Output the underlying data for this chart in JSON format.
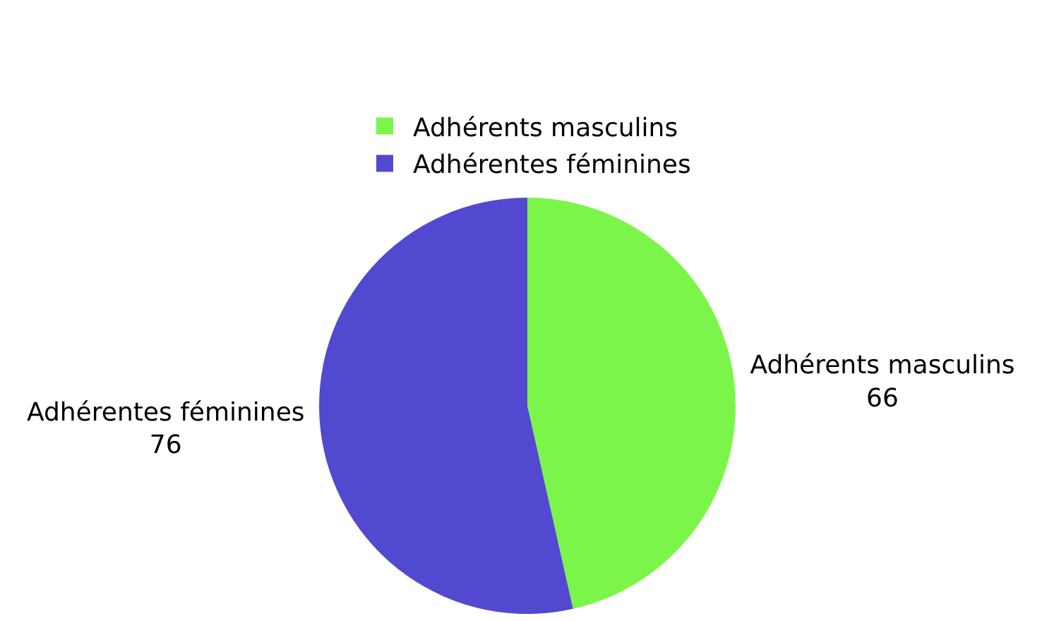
{
  "chart_data": {
    "type": "pie",
    "categories": [
      "Adhérents masculins",
      "Adhérentes féminines"
    ],
    "values": [
      66,
      76
    ],
    "colors": [
      "#7cf54a",
      "#5249d0"
    ],
    "data_labels": true,
    "legend": "top"
  }
}
